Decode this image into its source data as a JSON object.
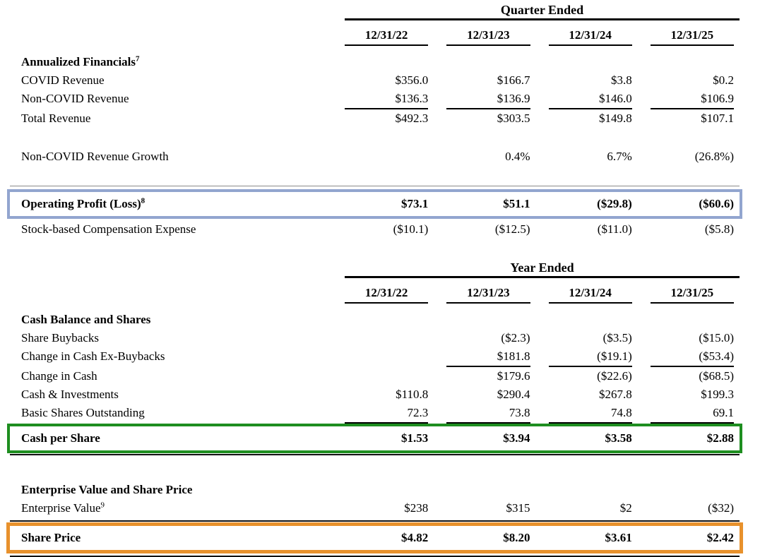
{
  "highlight_colors": {
    "operating_profit_box": "#92A5CF",
    "cash_per_share_box": "#1E8E20",
    "share_price_box": "#E8912C"
  },
  "table": {
    "sections": [
      {
        "period_header": "Quarter Ended",
        "columns": [
          "12/31/22",
          "12/31/23",
          "12/31/24",
          "12/31/25"
        ],
        "rows": [
          {
            "label": "Annualized Financials",
            "sup": "7",
            "cells": [
              "",
              "",
              "",
              ""
            ]
          },
          {
            "label": "COVID Revenue",
            "cells": [
              "$356.0",
              "$166.7",
              "$3.8",
              "$0.2"
            ]
          },
          {
            "label": "Non-COVID Revenue",
            "cells": [
              "$136.3",
              "$136.9",
              "$146.0",
              "$106.9"
            ]
          },
          {
            "label": "Total Revenue",
            "cells": [
              "$492.3",
              "$303.5",
              "$149.8",
              "$107.1"
            ]
          },
          {
            "label": "Non-COVID Revenue Growth",
            "cells": [
              "",
              "0.4%",
              "6.7%",
              "(26.8%)"
            ]
          },
          {
            "label": "Operating Profit (Loss)",
            "sup": "8",
            "cells": [
              "$73.1",
              "$51.1",
              "($29.8)",
              "($60.6)"
            ]
          },
          {
            "label": "Stock-based Compensation Expense",
            "cells": [
              "($10.1)",
              "($12.5)",
              "($11.0)",
              "($5.8)"
            ]
          }
        ]
      },
      {
        "period_header": "Year Ended",
        "columns": [
          "12/31/22",
          "12/31/23",
          "12/31/24",
          "12/31/25"
        ],
        "rows": [
          {
            "label": "Cash Balance and Shares",
            "cells": [
              "",
              "",
              "",
              ""
            ]
          },
          {
            "label": "Share Buybacks",
            "cells": [
              "",
              "($2.3)",
              "($3.5)",
              "($15.0)"
            ]
          },
          {
            "label": "Change in Cash Ex-Buybacks",
            "cells": [
              "",
              "$181.8",
              "($19.1)",
              "($53.4)"
            ]
          },
          {
            "label": "Change in Cash",
            "cells": [
              "",
              "$179.6",
              "($22.6)",
              "($68.5)"
            ]
          },
          {
            "label": "Cash & Investments",
            "cells": [
              "$110.8",
              "$290.4",
              "$267.8",
              "$199.3"
            ]
          },
          {
            "label": "Basic Shares Outstanding",
            "cells": [
              "72.3",
              "73.8",
              "74.8",
              "69.1"
            ]
          },
          {
            "label": "Cash per Share",
            "cells": [
              "$1.53",
              "$3.94",
              "$3.58",
              "$2.88"
            ]
          }
        ]
      },
      {
        "rows": [
          {
            "label": "Enterprise Value and Share Price",
            "cells": [
              "",
              "",
              "",
              ""
            ]
          },
          {
            "label": "Enterprise Value",
            "sup": "9",
            "cells": [
              "$238",
              "$315",
              "$2",
              "($32)"
            ]
          },
          {
            "label": "Share Price",
            "cells": [
              "$4.82",
              "$8.20",
              "$3.61",
              "$2.42"
            ]
          }
        ]
      }
    ]
  }
}
